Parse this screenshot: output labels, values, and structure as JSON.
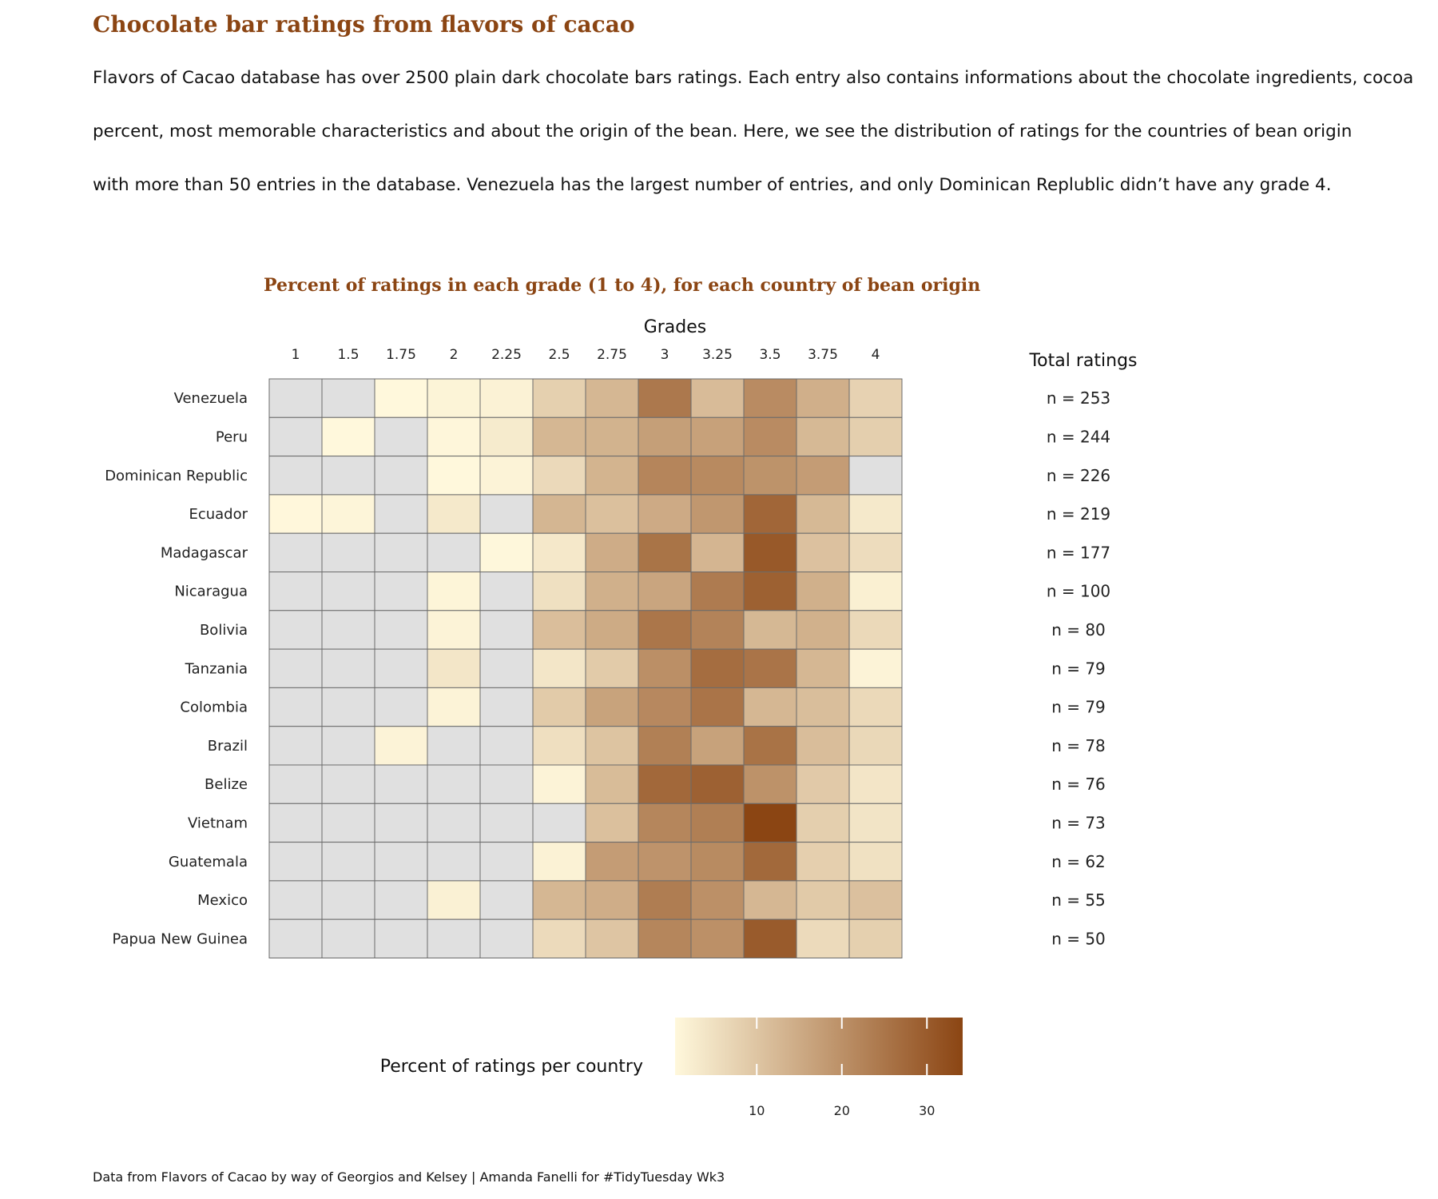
{
  "title": "Chocolate bar ratings from flavors of cacao",
  "subtitle_lines": [
    "Flavors of Cacao database has over 2500 plain dark chocolate bars ratings. Each entry also contains informations about the chocolate ingredients, cocoa",
    "percent, most memorable characteristics and about the origin of the bean. Here, we see the distribution of ratings for the countries of bean origin",
    "with more than 50 entries in the database. Venezuela has the largest number of entries, and only Dominican Replublic didn’t have any grade 4."
  ],
  "caption": "Data from Flavors of Cacao by way of Georgios and Kelsey | Amanda Fanelli for #TidyTuesday Wk3",
  "colors": {
    "low": "#FFF8DC",
    "high": "#8B4513",
    "missing": "#E0E0E0",
    "title": "#8B4513"
  },
  "chart_data": {
    "type": "heatmap",
    "title": "Percent of ratings in each grade (1 to 4), for each country of bean origin",
    "xlabel": "Grades",
    "x": [
      "1",
      "1.5",
      "1.75",
      "2",
      "2.25",
      "2.5",
      "2.75",
      "3",
      "3.25",
      "3.5",
      "3.75",
      "4"
    ],
    "y": [
      "Venezuela",
      "Peru",
      "Dominican Republic",
      "Ecuador",
      "Madagascar",
      "Nicaragua",
      "Bolivia",
      "Tanzania",
      "Colombia",
      "Brazil",
      "Belize",
      "Vietnam",
      "Guatemala",
      "Mexico",
      "Papua New Guinea"
    ],
    "total_label": "Total ratings",
    "n_prefix": "n = ",
    "totals": [
      253,
      244,
      226,
      219,
      177,
      100,
      80,
      79,
      79,
      78,
      76,
      73,
      62,
      55,
      50
    ],
    "values": [
      [
        null,
        null,
        0.4,
        1.2,
        1.6,
        8.0,
        12.6,
        24.5,
        11.9,
        20.9,
        14.2,
        7.5
      ],
      [
        null,
        0.4,
        null,
        0.8,
        2.9,
        12.7,
        13.5,
        17.2,
        16.8,
        20.9,
        12.3,
        8.2
      ],
      [
        null,
        null,
        null,
        0.4,
        1.3,
        6.2,
        13.3,
        22.1,
        21.2,
        19.5,
        17.7,
        null
      ],
      [
        0.5,
        0.9,
        null,
        3.2,
        null,
        12.8,
        11.0,
        15.1,
        18.7,
        27.9,
        12.3,
        3.2
      ],
      [
        null,
        null,
        null,
        null,
        0.6,
        3.4,
        14.7,
        25.4,
        13.0,
        30.5,
        10.7,
        5.6
      ],
      [
        null,
        null,
        null,
        1.0,
        null,
        5.0,
        14.0,
        16.0,
        24.0,
        29.0,
        14.0,
        2.0
      ],
      [
        null,
        null,
        null,
        1.3,
        null,
        11.3,
        15.0,
        25.0,
        22.5,
        12.5,
        13.8,
        6.3
      ],
      [
        null,
        null,
        null,
        3.8,
        null,
        3.8,
        8.9,
        20.3,
        26.6,
        25.3,
        12.7,
        1.3
      ],
      [
        null,
        null,
        null,
        1.3,
        null,
        8.9,
        16.5,
        21.5,
        25.3,
        12.7,
        11.4,
        6.3
      ],
      [
        null,
        null,
        1.3,
        null,
        null,
        5.1,
        10.3,
        23.1,
        16.7,
        25.6,
        11.5,
        6.4
      ],
      [
        null,
        null,
        null,
        null,
        null,
        1.3,
        11.8,
        27.6,
        28.9,
        19.7,
        9.2,
        3.9
      ],
      [
        null,
        null,
        null,
        null,
        null,
        null,
        11.0,
        21.9,
        23.3,
        34.2,
        8.2,
        4.1
      ],
      [
        null,
        null,
        null,
        null,
        null,
        1.6,
        17.7,
        19.4,
        21.0,
        27.4,
        8.1,
        4.8
      ],
      [
        null,
        null,
        null,
        1.8,
        null,
        12.7,
        14.5,
        23.6,
        20.0,
        12.7,
        9.1,
        10.9
      ],
      [
        null,
        null,
        null,
        null,
        null,
        6.0,
        10.0,
        22.0,
        20.0,
        30.0,
        6.0,
        8.0
      ]
    ],
    "legend": {
      "title": "Percent of ratings per country",
      "min": 0.4,
      "max": 34.2,
      "ticks": [
        10,
        20,
        30
      ]
    }
  }
}
